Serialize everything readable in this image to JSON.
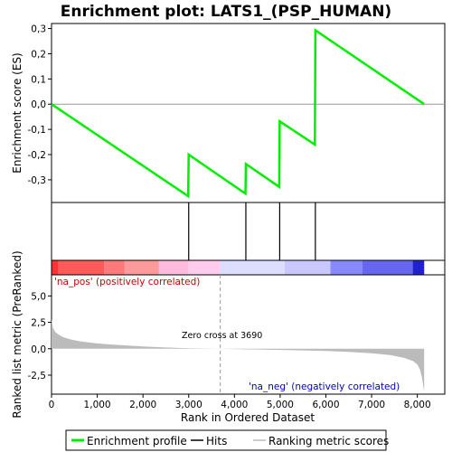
{
  "chart_data": {
    "type": "line",
    "title": "Enrichment plot: LATS1_(PSP_HUMAN)",
    "es_panel": {
      "ylabel": "Enrichment score (ES)",
      "ylim": [
        -0.39,
        0.32
      ],
      "yticks": [
        0.3,
        0.2,
        0.1,
        0.0,
        -0.1,
        -0.2,
        -0.3
      ],
      "ytick_labels": [
        "0,3",
        "0,2",
        "0,1",
        "0,0",
        "-0,1",
        "-0,2",
        "-0,3"
      ],
      "series": [
        {
          "name": "Enrichment profile",
          "color": "#00ee00",
          "x": [
            0,
            2990,
            3000,
            4240,
            4250,
            4980,
            4990,
            5760,
            5770,
            8150
          ],
          "y": [
            0.0,
            -0.365,
            -0.2,
            -0.355,
            -0.237,
            -0.328,
            -0.068,
            -0.16,
            0.293,
            0.0
          ]
        }
      ]
    },
    "hits": {
      "name": "Hits",
      "color": "#000000",
      "positions": [
        3000,
        4250,
        4990,
        5770
      ]
    },
    "color_bar": {
      "segments": [
        {
          "start": 0,
          "end": 150,
          "color": "#ff3333"
        },
        {
          "start": 150,
          "end": 1150,
          "color": "#ff5a5a"
        },
        {
          "start": 1150,
          "end": 1600,
          "color": "#ff7a7a"
        },
        {
          "start": 1600,
          "end": 2350,
          "color": "#ff9a9a"
        },
        {
          "start": 2350,
          "end": 3000,
          "color": "#ffbbdd"
        },
        {
          "start": 3000,
          "end": 3690,
          "color": "#ffccee"
        },
        {
          "start": 3690,
          "end": 5100,
          "color": "#ddddff"
        },
        {
          "start": 5100,
          "end": 6100,
          "color": "#c8c8ff"
        },
        {
          "start": 6100,
          "end": 6800,
          "color": "#8888ff"
        },
        {
          "start": 6800,
          "end": 7900,
          "color": "#6666ee"
        },
        {
          "start": 7900,
          "end": 8150,
          "color": "#2222cc"
        }
      ]
    },
    "metric_panel": {
      "ylabel": "Ranked list metric (PreRanked)",
      "ylim": [
        -4.3,
        7.0
      ],
      "yticks": [
        5.0,
        2.5,
        0.0,
        -2.5
      ],
      "ytick_labels": [
        "5,0",
        "2,5",
        "0,0",
        "-2,5"
      ],
      "series": [
        {
          "name": "Ranking metric scores",
          "color": "#bbbbbb",
          "x": [
            0,
            30,
            80,
            150,
            250,
            400,
            600,
            800,
            1000,
            1300,
            1600,
            2000,
            2500,
            3000,
            3690,
            4200,
            4800,
            5400,
            6000,
            6500,
            7000,
            7400,
            7700,
            7900,
            8000,
            8060,
            8100,
            8130,
            8150
          ],
          "y": [
            2.8,
            2.0,
            1.6,
            1.35,
            1.1,
            0.9,
            0.72,
            0.6,
            0.5,
            0.4,
            0.32,
            0.22,
            0.12,
            0.05,
            0.0,
            -0.05,
            -0.1,
            -0.15,
            -0.22,
            -0.3,
            -0.42,
            -0.6,
            -0.85,
            -1.15,
            -1.5,
            -2.0,
            -2.7,
            -3.5,
            -4.1
          ]
        }
      ],
      "annotations": {
        "pos_label": "'na_pos' (positively correlated)",
        "neg_label": "'na_neg' (negatively correlated)",
        "zero_cross": "Zero cross at 3690",
        "zero_cross_x": 3690
      }
    },
    "xaxis": {
      "xlabel": "Rank in Ordered Dataset",
      "xlim": [
        0,
        8600
      ],
      "xticks": [
        0,
        1000,
        2000,
        3000,
        4000,
        5000,
        6000,
        7000,
        8000
      ],
      "xtick_labels": [
        "0",
        "1,000",
        "2,000",
        "3,000",
        "4,000",
        "5,000",
        "6,000",
        "7,000",
        "8,000"
      ]
    },
    "legend": {
      "position": "bottom",
      "entries": [
        {
          "label": "Enrichment profile",
          "color": "#00ee00"
        },
        {
          "label": "Hits",
          "color": "#000000"
        },
        {
          "label": "Ranking metric scores",
          "color": "#bbbbbb"
        }
      ]
    }
  }
}
